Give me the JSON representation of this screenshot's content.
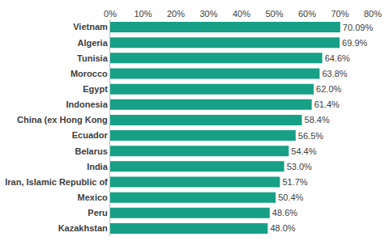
{
  "chart_data": {
    "type": "bar",
    "orientation": "horizontal",
    "categories": [
      "Vietnam",
      "Algeria",
      "Tunisia",
      "Morocco",
      "Egypt",
      "Indonesia",
      "China (ex Hong Kong",
      "Ecuador",
      "Belarus",
      "India",
      "Iran, Islamic Republic of",
      "Mexico",
      "Peru",
      "Kazakhstan"
    ],
    "values": [
      70.09,
      69.9,
      64.6,
      63.8,
      62.0,
      61.4,
      58.4,
      56.5,
      54.4,
      53.0,
      51.7,
      50.4,
      48.6,
      48.0
    ],
    "value_labels": [
      "70.09%",
      "69.9%",
      "64.6%",
      "63.8%",
      "62.0%",
      "61.4%",
      "58.4%",
      "56.5%",
      "54.4%",
      "53.0%",
      "51.7%",
      "50.4%",
      "48.6%",
      "48.0%"
    ],
    "data_labels": true,
    "color": "#17a085",
    "xlim": [
      0,
      80
    ],
    "xticks": [
      {
        "value": 0,
        "label": "0%"
      },
      {
        "value": 10,
        "label": "10%"
      },
      {
        "value": 20,
        "label": "20%"
      },
      {
        "value": 30,
        "label": "30%"
      },
      {
        "value": 40,
        "label": "40%"
      },
      {
        "value": 50,
        "label": "50%"
      },
      {
        "value": 60,
        "label": "60%"
      },
      {
        "value": 70,
        "label": "70%"
      },
      {
        "value": 80,
        "label": "80%"
      }
    ],
    "grid": false
  }
}
